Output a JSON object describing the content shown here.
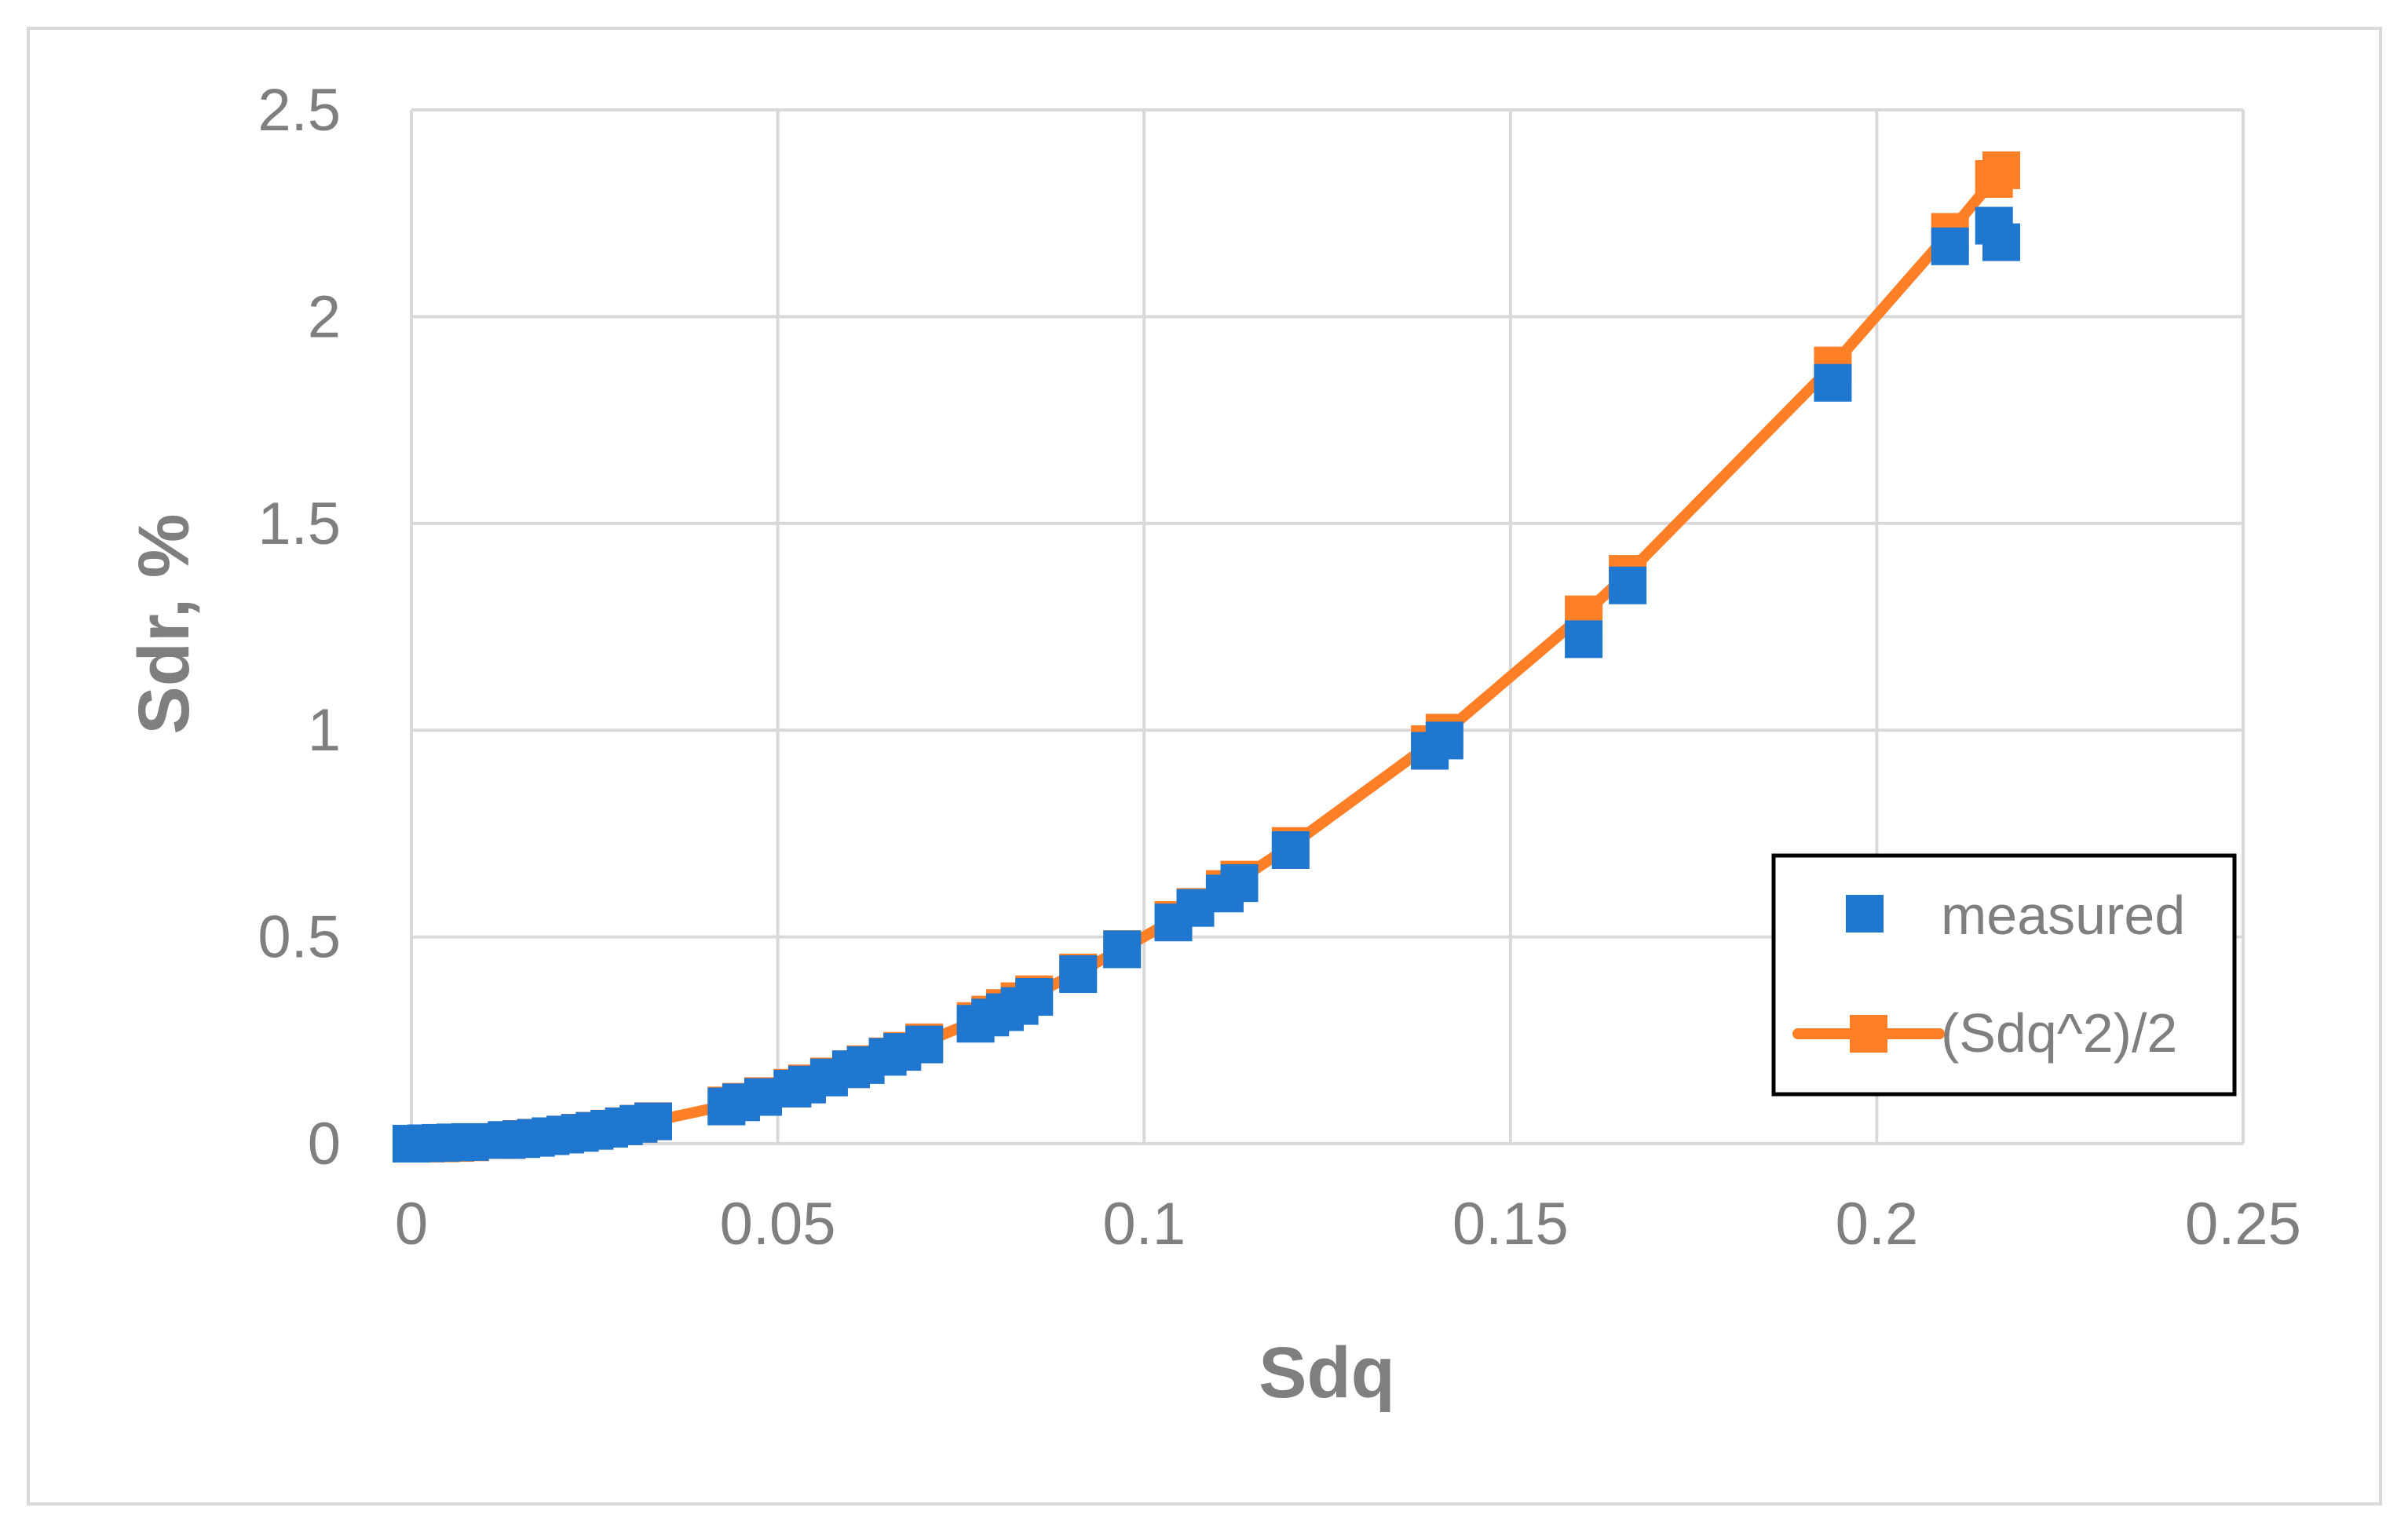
{
  "chart_data": {
    "type": "scatter",
    "title": "",
    "xlabel": "Sdq",
    "ylabel": "Sdr, %",
    "xlim": [
      0,
      0.25
    ],
    "ylim": [
      0,
      2.5
    ],
    "xticks": [
      {
        "value": 0,
        "label": "0"
      },
      {
        "value": 0.05,
        "label": "0.05"
      },
      {
        "value": 0.1,
        "label": "0.1"
      },
      {
        "value": 0.15,
        "label": "0.15"
      },
      {
        "value": 0.2,
        "label": "0.2"
      },
      {
        "value": 0.25,
        "label": "0.25"
      }
    ],
    "yticks": [
      {
        "value": 0,
        "label": "0"
      },
      {
        "value": 0.5,
        "label": "0.5"
      },
      {
        "value": 1,
        "label": "1"
      },
      {
        "value": 1.5,
        "label": "1.5"
      },
      {
        "value": 2,
        "label": "2"
      },
      {
        "value": 2.5,
        "label": "2.5"
      }
    ],
    "grid": true,
    "legend_position": "bottom-right",
    "series": [
      {
        "name": "measured",
        "style": "markers",
        "color": "#1f77d0",
        "x": [
          0,
          0.002,
          0.004,
          0.006,
          0.008,
          0.013,
          0.015,
          0.017,
          0.019,
          0.021,
          0.023,
          0.025,
          0.027,
          0.029,
          0.031,
          0.033,
          0.043,
          0.045,
          0.048,
          0.052,
          0.054,
          0.057,
          0.06,
          0.062,
          0.065,
          0.067,
          0.07,
          0.077,
          0.079,
          0.081,
          0.083,
          0.085,
          0.091,
          0.097,
          0.104,
          0.107,
          0.111,
          0.113,
          0.12,
          0.139,
          0.141,
          0.16,
          0.166,
          0.194,
          0.21,
          0.216,
          0.217
        ],
        "y": [
          0,
          0.001,
          0.002,
          0.003,
          0.004,
          0.009,
          0.011,
          0.014,
          0.018,
          0.022,
          0.026,
          0.031,
          0.036,
          0.042,
          0.048,
          0.054,
          0.09,
          0.1,
          0.113,
          0.133,
          0.143,
          0.16,
          0.18,
          0.19,
          0.21,
          0.222,
          0.24,
          0.29,
          0.305,
          0.318,
          0.333,
          0.355,
          0.41,
          0.47,
          0.535,
          0.57,
          0.605,
          0.63,
          0.71,
          0.95,
          0.975,
          1.22,
          1.35,
          1.84,
          2.17,
          2.22,
          2.18
        ]
      },
      {
        "name": "(Sdq^2)/2",
        "style": "line-markers",
        "color": "#ff7f27",
        "x": [
          0,
          0.002,
          0.004,
          0.006,
          0.008,
          0.013,
          0.015,
          0.017,
          0.019,
          0.021,
          0.023,
          0.025,
          0.027,
          0.029,
          0.031,
          0.033,
          0.043,
          0.045,
          0.048,
          0.052,
          0.054,
          0.057,
          0.06,
          0.062,
          0.065,
          0.067,
          0.07,
          0.077,
          0.079,
          0.081,
          0.083,
          0.085,
          0.091,
          0.097,
          0.104,
          0.107,
          0.111,
          0.113,
          0.12,
          0.139,
          0.141,
          0.16,
          0.166,
          0.194,
          0.21,
          0.216,
          0.217
        ],
        "y": [
          0,
          0.0002,
          0.0008,
          0.0018,
          0.0032,
          0.0085,
          0.0113,
          0.0145,
          0.0181,
          0.0221,
          0.0265,
          0.0313,
          0.0365,
          0.0421,
          0.048,
          0.0545,
          0.0925,
          0.1013,
          0.1152,
          0.1352,
          0.1458,
          0.1625,
          0.18,
          0.1922,
          0.2113,
          0.2245,
          0.245,
          0.2965,
          0.312,
          0.328,
          0.3445,
          0.3613,
          0.414,
          0.4705,
          0.5408,
          0.5725,
          0.616,
          0.6385,
          0.72,
          0.966,
          0.994,
          1.28,
          1.378,
          1.882,
          2.205,
          2.333,
          2.354
        ]
      }
    ]
  }
}
